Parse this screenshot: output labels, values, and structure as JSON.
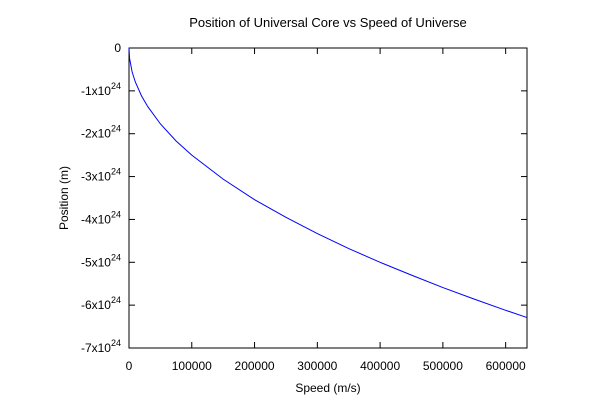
{
  "chart_data": {
    "type": "line",
    "title": "Position of Universal Core vs Speed of Universe",
    "xlabel": "Speed (m/s)",
    "ylabel": "Position (m)",
    "xlim": [
      0,
      634000
    ],
    "ylim": [
      -7e+24,
      0
    ],
    "grid": false,
    "legend": "none",
    "x_ticks": [
      {
        "value": 0,
        "label": "0"
      },
      {
        "value": 100000,
        "label": "100000"
      },
      {
        "value": 200000,
        "label": "200000"
      },
      {
        "value": 300000,
        "label": "300000"
      },
      {
        "value": 400000,
        "label": "400000"
      },
      {
        "value": 500000,
        "label": "500000"
      },
      {
        "value": 600000,
        "label": "600000"
      }
    ],
    "y_ticks": [
      {
        "value": 0,
        "label": "0",
        "exponent": ""
      },
      {
        "value": -1e+24,
        "label": "-1x10",
        "exponent": "24"
      },
      {
        "value": -2e+24,
        "label": "-2x10",
        "exponent": "24"
      },
      {
        "value": -3e+24,
        "label": "-3x10",
        "exponent": "24"
      },
      {
        "value": -4e+24,
        "label": "-4x10",
        "exponent": "24"
      },
      {
        "value": -5e+24,
        "label": "-5x10",
        "exponent": "24"
      },
      {
        "value": -6e+24,
        "label": "-6x10",
        "exponent": "24"
      },
      {
        "value": -7e+24,
        "label": "-7x10",
        "exponent": "24"
      }
    ],
    "series": [
      {
        "color": "#0000ff",
        "x": [
          0,
          1000,
          5000,
          10000,
          20000,
          30000,
          50000,
          75000,
          100000,
          150000,
          200000,
          250000,
          300000,
          350000,
          400000,
          450000,
          500000,
          550000,
          600000,
          634000
        ],
        "y": [
          0,
          -2.5e+23,
          -5.6e+23,
          -7.9e+23,
          -1.12e+24,
          -1.37e+24,
          -1.77e+24,
          -2.17e+24,
          -2.5e+24,
          -3.06e+24,
          -3.54e+24,
          -3.95e+24,
          -4.33e+24,
          -4.68e+24,
          -5e+24,
          -5.3e+24,
          -5.59e+24,
          -5.86e+24,
          -6.12e+24,
          -6.29e+24
        ]
      }
    ]
  }
}
